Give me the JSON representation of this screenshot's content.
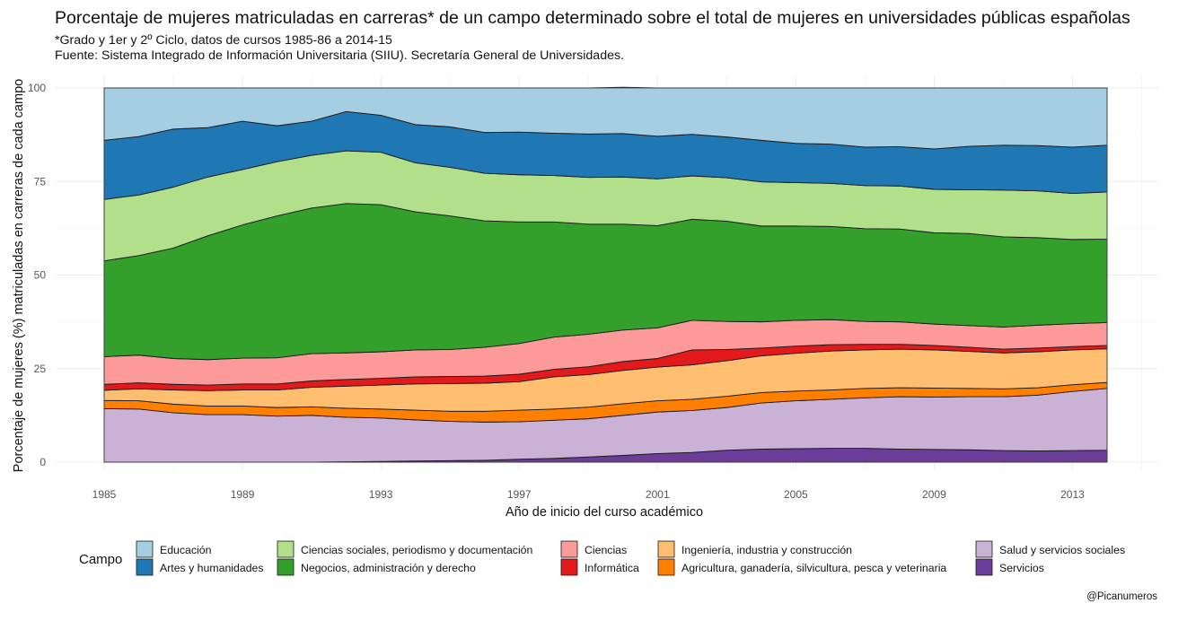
{
  "chart_data": {
    "type": "area",
    "stacked": true,
    "title": "Porcentaje de mujeres matriculadas en carreras* de un campo determinado sobre el total de mujeres en universidades públicas españolas",
    "subtitle_lines": [
      "*Grado y 1er y 2º Ciclo, datos de cursos 1985-86 a 2014-15",
      "Fuente: Sistema Integrado de Información Universitaria (SIIU). Secretaría General de Universidades."
    ],
    "xlabel": "Año de inicio del curso académico",
    "ylabel": "Porcentaje de mujeres (%) matriculadas en carreras de cada campo",
    "xlim": [
      1985,
      2014
    ],
    "ylim": [
      0,
      100
    ],
    "x_ticks": [
      1985,
      1989,
      1993,
      1997,
      2001,
      2005,
      2009,
      2013
    ],
    "y_ticks": [
      0,
      25,
      50,
      75,
      100
    ],
    "grid": true,
    "legend_title": "Campo",
    "legend_position": "bottom",
    "caption": "@Picanumeros",
    "x": [
      1985,
      1986,
      1987,
      1988,
      1989,
      1990,
      1991,
      1992,
      1993,
      1994,
      1995,
      1996,
      1997,
      1998,
      1999,
      2000,
      2001,
      2002,
      2003,
      2004,
      2005,
      2006,
      2007,
      2008,
      2009,
      2010,
      2011,
      2012,
      2013,
      2014
    ],
    "series": [
      {
        "name": "Servicios",
        "color": "#6a3d9a",
        "values": [
          0,
          0,
          0,
          0,
          0,
          0,
          0,
          0.1,
          0.2,
          0.3,
          0.4,
          0.5,
          0.8,
          1.0,
          1.4,
          1.8,
          2.3,
          2.6,
          3.2,
          3.5,
          3.6,
          3.7,
          3.7,
          3.5,
          3.4,
          3.3,
          3.1,
          3.0,
          3.1,
          3.2
        ]
      },
      {
        "name": "Salud y servicios sociales",
        "color": "#cab2d6",
        "values": [
          14.3,
          14.2,
          13.2,
          12.7,
          12.7,
          12.3,
          12.5,
          11.9,
          11.6,
          11.0,
          10.5,
          10.2,
          10.0,
          10.2,
          10.2,
          10.7,
          11.1,
          11.2,
          11.4,
          12.3,
          12.8,
          13.1,
          13.5,
          14.0,
          14.0,
          14.2,
          14.4,
          14.9,
          15.8,
          16.5
        ]
      },
      {
        "name": "Agricultura, ganadería, silvicultura, pesca y veterinaria",
        "color": "#ff7f00",
        "values": [
          2.2,
          2.2,
          2.3,
          2.3,
          2.3,
          2.3,
          2.3,
          2.4,
          2.4,
          2.6,
          2.7,
          2.9,
          3.1,
          3.0,
          3.1,
          3.1,
          3.0,
          3.0,
          3.0,
          2.8,
          2.6,
          2.5,
          2.5,
          2.4,
          2.4,
          2.2,
          2.1,
          2.0,
          1.8,
          1.6
        ]
      },
      {
        "name": "Ingeniería, industria y construcción",
        "color": "#fdbf6f",
        "values": [
          2.7,
          3.2,
          3.8,
          4.1,
          4.3,
          4.7,
          5.2,
          5.9,
          6.4,
          7.0,
          7.4,
          7.5,
          7.6,
          8.6,
          8.7,
          8.9,
          9.0,
          9.2,
          9.5,
          9.8,
          10.1,
          10.4,
          10.3,
          10.3,
          10.2,
          9.9,
          9.6,
          9.6,
          9.3,
          9.0
        ]
      },
      {
        "name": "Informática",
        "color": "#e31a1c",
        "values": [
          1.6,
          1.6,
          1.5,
          1.5,
          1.6,
          1.6,
          1.7,
          1.8,
          1.8,
          1.9,
          1.9,
          1.9,
          2.0,
          2.0,
          2.1,
          2.4,
          2.3,
          4.0,
          3.0,
          2.1,
          1.9,
          1.7,
          1.5,
          1.3,
          1.2,
          1.1,
          1.0,
          1.0,
          0.9,
          0.9
        ]
      },
      {
        "name": "Ciencias",
        "color": "#fb9a99",
        "values": [
          7.4,
          7.4,
          6.9,
          6.8,
          6.9,
          7.0,
          7.3,
          7.1,
          7.1,
          7.2,
          7.2,
          7.7,
          8.2,
          8.6,
          8.7,
          8.4,
          8.2,
          7.9,
          7.5,
          7.0,
          6.9,
          6.7,
          6.1,
          6.0,
          5.7,
          5.8,
          5.9,
          6.1,
          6.1,
          6.1
        ]
      },
      {
        "name": "Negocios, administración y derecho",
        "color": "#33a02c",
        "values": [
          25.6,
          26.6,
          29.5,
          33.1,
          35.6,
          37.9,
          38.9,
          39.9,
          39.3,
          36.9,
          35.7,
          33.8,
          32.5,
          30.8,
          29.4,
          28.3,
          27.3,
          27.0,
          26.8,
          25.6,
          25.2,
          24.9,
          24.8,
          24.8,
          24.4,
          24.6,
          24.1,
          23.4,
          22.5,
          22.3
        ]
      },
      {
        "name": "Ciencias sociales, periodismo y documentación",
        "color": "#b2df8a",
        "values": [
          16.4,
          16.2,
          16.3,
          15.7,
          14.8,
          14.5,
          14.1,
          14.1,
          14.0,
          13.1,
          13.0,
          12.7,
          12.6,
          12.4,
          12.5,
          12.6,
          12.5,
          11.6,
          11.6,
          11.8,
          11.6,
          11.5,
          11.5,
          11.5,
          11.6,
          11.7,
          12.5,
          12.5,
          12.3,
          12.6
        ]
      },
      {
        "name": "Artes y humanidades",
        "color": "#1f78b4",
        "values": [
          15.8,
          15.6,
          15.5,
          13.2,
          12.9,
          9.6,
          9.1,
          10.5,
          9.9,
          10.2,
          10.8,
          10.9,
          11.4,
          11.3,
          11.6,
          11.6,
          11.4,
          11.1,
          10.9,
          11.1,
          10.5,
          10.5,
          10.3,
          10.5,
          10.8,
          11.6,
          12.0,
          12.1,
          12.4,
          12.5
        ]
      },
      {
        "name": "Educación",
        "color": "#a6cee3",
        "values": [
          14.0,
          13.0,
          11.0,
          10.6,
          8.9,
          10.1,
          8.9,
          6.3,
          7.3,
          9.8,
          10.4,
          11.9,
          11.8,
          12.1,
          12.3,
          12.4,
          12.9,
          12.4,
          13.1,
          14.0,
          14.8,
          15.0,
          15.8,
          15.7,
          16.3,
          15.6,
          15.3,
          15.4,
          15.8,
          15.3
        ]
      }
    ],
    "legend": [
      {
        "label": "Educación",
        "color": "#a6cee3"
      },
      {
        "label": "Artes y humanidades",
        "color": "#1f78b4"
      },
      {
        "label": "Ciencias sociales, periodismo y documentación",
        "color": "#b2df8a"
      },
      {
        "label": "Negocios, administración y derecho",
        "color": "#33a02c"
      },
      {
        "label": "Ciencias",
        "color": "#fb9a99"
      },
      {
        "label": "Informática",
        "color": "#e31a1c"
      },
      {
        "label": "Ingeniería, industria y construcción",
        "color": "#fdbf6f"
      },
      {
        "label": "Agricultura, ganadería, silvicultura, pesca y veterinaria",
        "color": "#ff7f00"
      },
      {
        "label": "Salud y servicios sociales",
        "color": "#cab2d6"
      },
      {
        "label": "Servicios",
        "color": "#6a3d9a"
      }
    ]
  }
}
